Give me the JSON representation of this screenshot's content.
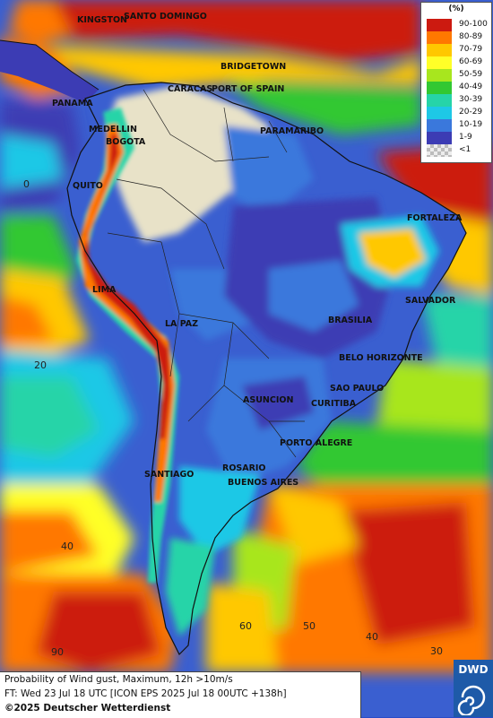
{
  "legend": {
    "title": "(%)",
    "items": [
      {
        "label": "90-100",
        "color": "#cc1a10"
      },
      {
        "label": "80-89",
        "color": "#ff7800"
      },
      {
        "label": "70-79",
        "color": "#ffc800"
      },
      {
        "label": "60-69",
        "color": "#ffff28"
      },
      {
        "label": "50-59",
        "color": "#a8e61e"
      },
      {
        "label": "40-49",
        "color": "#32c832"
      },
      {
        "label": "30-39",
        "color": "#26d4a8"
      },
      {
        "label": "20-29",
        "color": "#1ec8e6"
      },
      {
        "label": "10-19",
        "color": "#3a78dc"
      },
      {
        "label": "1-9",
        "color": "#3c3cb4"
      },
      {
        "label": "<1",
        "color": "#cfcfcf"
      }
    ]
  },
  "cities": {
    "kingston": "KINGSTON",
    "santo_domingo": "SANTO DOMINGO",
    "bridgetown": "BRIDGETOWN",
    "caracas": "CARACAS",
    "port_of_spain": "PORT OF SPAIN",
    "panama": "PANAMA",
    "paramaribo": "PARAMARIBO",
    "medellin": "MEDELLIN",
    "bogota": "BOGOTA",
    "quito": "QUITO",
    "fortaleza": "FORTALEZA",
    "lima": "LIMA",
    "salvador": "SALVADOR",
    "la_paz": "LA PAZ",
    "brasilia": "BRASILIA",
    "belo_horizonte": "BELO HORIZONTE",
    "sao_paulo": "SAO PAULO",
    "asuncion": "ASUNCION",
    "curitiba": "CURITIBA",
    "porto_alegre": "PORTO ALEGRE",
    "rosario": "ROSARIO",
    "santiago": "SANTIAGO",
    "buenos_aires": "BUENOS AIRES"
  },
  "grid_labels": {
    "lat_0": "0",
    "lat_20": "20",
    "lat_40": "40",
    "lon_90": "90",
    "lon_60": "60",
    "lon_50": "50",
    "lon_40": "40",
    "lon_30": "30"
  },
  "footer": {
    "line1": "Probability of Wind gust, Maximum, 12h >10m/s",
    "line2": "FT: Wed 23 Jul 18 UTC [ICON EPS 2025 Jul 18 00UTC +138h]",
    "line3": "©2025 Deutscher Wetterdienst"
  },
  "logo": {
    "text": "DWD"
  }
}
